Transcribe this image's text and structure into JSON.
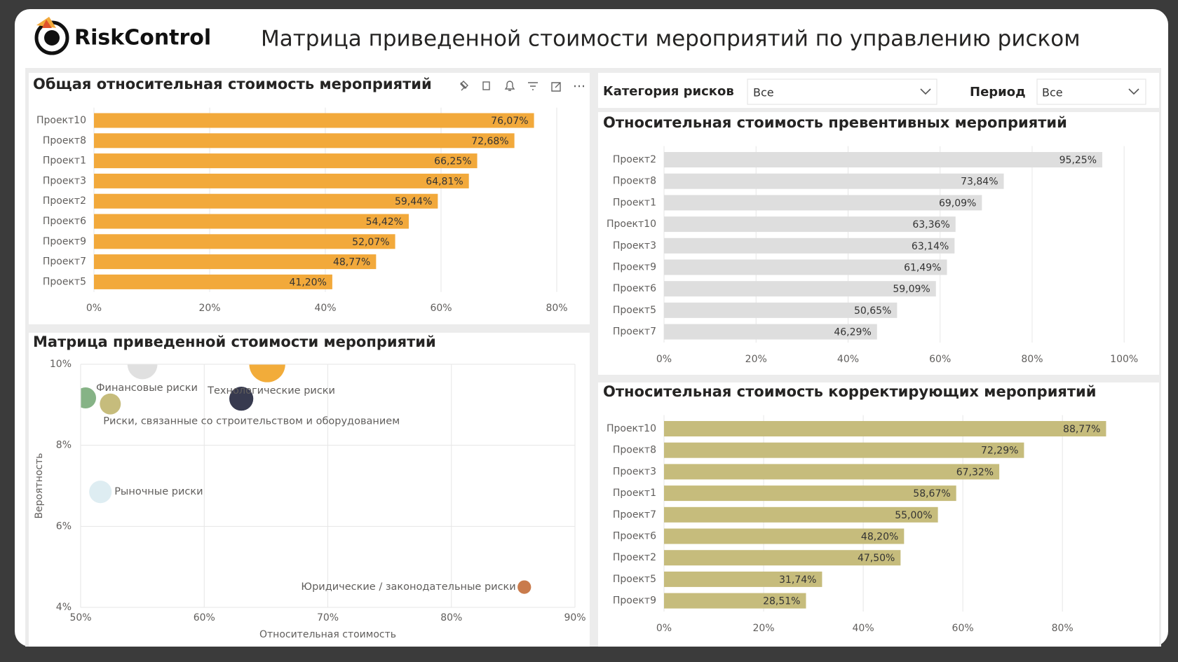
{
  "header": {
    "logo": "RiskControl",
    "title": "Матрица приведенной стоимости мероприятий по управлению риском"
  },
  "filters": [
    {
      "label": "Категория рисков",
      "value": "Все"
    },
    {
      "label": "Период",
      "value": "Все"
    }
  ],
  "chart_data": [
    {
      "type": "bar",
      "title": "Общая относительная стоимость мероприятий",
      "color": "#f2a93b",
      "categories": [
        "Проект10",
        "Проект8",
        "Проект1",
        "Проект3",
        "Проект2",
        "Проект6",
        "Проект9",
        "Проект7",
        "Проект5"
      ],
      "values": [
        76.07,
        72.68,
        66.25,
        64.81,
        59.44,
        54.42,
        52.07,
        48.77,
        41.2
      ],
      "value_labels": [
        "76,07%",
        "72,68%",
        "66,25%",
        "64,81%",
        "59,44%",
        "54,42%",
        "52,07%",
        "48,77%",
        "41,20%"
      ],
      "xlim": [
        0,
        84
      ],
      "xticks": [
        {
          "value": 0,
          "label": "0%"
        },
        {
          "value": 20,
          "label": "20%"
        },
        {
          "value": 40,
          "label": "40%"
        },
        {
          "value": 60,
          "label": "60%"
        },
        {
          "value": 80,
          "label": "80%"
        }
      ],
      "grid": true
    },
    {
      "type": "bar",
      "title": "Относительная стоимость превентивных мероприятий",
      "color": "#dedede",
      "categories": [
        "Проект2",
        "Проект8",
        "Проект1",
        "Проект10",
        "Проект3",
        "Проект9",
        "Проект6",
        "Проект5",
        "Проект7"
      ],
      "values": [
        95.25,
        73.84,
        69.09,
        63.36,
        63.14,
        61.49,
        59.09,
        50.65,
        46.29
      ],
      "value_labels": [
        "95,25%",
        "73,84%",
        "69,09%",
        "63,36%",
        "63,14%",
        "61,49%",
        "59,09%",
        "50,65%",
        "46,29%"
      ],
      "xlim": [
        0,
        105
      ],
      "xticks": [
        {
          "value": 0,
          "label": "0%"
        },
        {
          "value": 20,
          "label": "20%"
        },
        {
          "value": 40,
          "label": "40%"
        },
        {
          "value": 60,
          "label": "60%"
        },
        {
          "value": 80,
          "label": "80%"
        },
        {
          "value": 100,
          "label": "100%"
        }
      ],
      "grid": true
    },
    {
      "type": "bar",
      "title": "Относительная стоимость корректирующих мероприятий",
      "color": "#c6bc7c",
      "categories": [
        "Проект10",
        "Проект8",
        "Проект3",
        "Проект1",
        "Проект7",
        "Проект6",
        "Проект2",
        "Проект5",
        "Проект9"
      ],
      "values": [
        88.77,
        72.29,
        67.32,
        58.67,
        55.0,
        48.2,
        47.5,
        31.74,
        28.51
      ],
      "value_labels": [
        "88,77%",
        "72,29%",
        "67,32%",
        "58,67%",
        "55,00%",
        "48,20%",
        "47,50%",
        "31,74%",
        "28,51%"
      ],
      "xlim": [
        0,
        98
      ],
      "xticks": [
        {
          "value": 0,
          "label": "0%"
        },
        {
          "value": 20,
          "label": "20%"
        },
        {
          "value": 40,
          "label": "40%"
        },
        {
          "value": 60,
          "label": "60%"
        },
        {
          "value": 80,
          "label": "80%"
        }
      ],
      "grid": true
    },
    {
      "type": "scatter",
      "title": "Матрица приведенной стоимости мероприятий",
      "x_label": "Относительная стоимость",
      "y_label": "Вероятность",
      "categories": [
        "Финансовые риски",
        null,
        null,
        "Технологические риски",
        "Риски, связанные со строительством и оборудованием",
        "Рыночные риски",
        "Юридические / законодательные риски"
      ],
      "x": [
        50.4,
        55.0,
        65.1,
        63.0,
        52.4,
        51.6,
        85.9
      ],
      "y": [
        9.17,
        10.0,
        10.0,
        9.15,
        9.02,
        6.85,
        4.5
      ],
      "sizes": [
        14,
        20,
        24,
        16,
        14,
        15,
        9
      ],
      "colors": [
        "#86b386",
        "#e0e0e0",
        "#f2ac3a",
        "#373a4f",
        "#c6bc7c",
        "#deedf2",
        "#c97b4c"
      ],
      "xlim": [
        50,
        90
      ],
      "ylim": [
        4,
        10
      ],
      "xticks": [
        {
          "value": 50,
          "label": "50%"
        },
        {
          "value": 60,
          "label": "60%"
        },
        {
          "value": 70,
          "label": "70%"
        },
        {
          "value": 80,
          "label": "80%"
        },
        {
          "value": 90,
          "label": "90%"
        }
      ],
      "yticks": [
        {
          "value": 4,
          "label": "4%"
        },
        {
          "value": 6,
          "label": "6%"
        },
        {
          "value": 8,
          "label": "8%"
        },
        {
          "value": 10,
          "label": "10%"
        }
      ],
      "grid": true
    }
  ]
}
